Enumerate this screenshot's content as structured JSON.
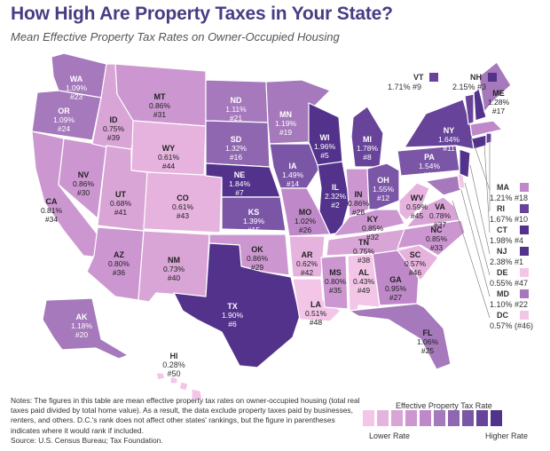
{
  "title": "How High Are Property Taxes in Your State?",
  "subtitle": "Mean Effective Property Tax Rates on Owner-Occupied Housing",
  "notes": "Notes: The figures in this table are mean effective property tax rates on owner-occupied housing (total real taxes paid divided by total home value). As a result, the data exclude property taxes paid by businesses, renters, and others. D.C.'s rank does not affect other states' rankings, but the figure in parentheses indicates where it would rank if included.",
  "source": "Source: U.S. Census Bureau; Tax Foundation.",
  "legend": {
    "title": "Effective Property Tax Rate",
    "low": "Lower Rate",
    "high": "Higher Rate",
    "colors": [
      "#f3c6e8",
      "#e6b3de",
      "#d9a4d6",
      "#cc97d0",
      "#bf88c8",
      "#a579bb",
      "#8f67b0",
      "#7b56a6",
      "#67449a",
      "#53328c"
    ]
  },
  "states": [
    {
      "ab": "WA",
      "rate": "1.09%",
      "rank": "#23"
    },
    {
      "ab": "OR",
      "rate": "1.09%",
      "rank": "#24"
    },
    {
      "ab": "CA",
      "rate": "0.81%",
      "rank": "#34"
    },
    {
      "ab": "NV",
      "rate": "0.86%",
      "rank": "#30"
    },
    {
      "ab": "ID",
      "rate": "0.75%",
      "rank": "#39"
    },
    {
      "ab": "MT",
      "rate": "0.86%",
      "rank": "#31"
    },
    {
      "ab": "WY",
      "rate": "0.61%",
      "rank": "#44"
    },
    {
      "ab": "UT",
      "rate": "0.68%",
      "rank": "#41"
    },
    {
      "ab": "CO",
      "rate": "0.61%",
      "rank": "#43"
    },
    {
      "ab": "AZ",
      "rate": "0.80%",
      "rank": "#36"
    },
    {
      "ab": "NM",
      "rate": "0.73%",
      "rank": "#40"
    },
    {
      "ab": "ND",
      "rate": "1.11%",
      "rank": "#21"
    },
    {
      "ab": "SD",
      "rate": "1.32%",
      "rank": "#16"
    },
    {
      "ab": "NE",
      "rate": "1.84%",
      "rank": "#7"
    },
    {
      "ab": "KS",
      "rate": "1.39%",
      "rank": "#15"
    },
    {
      "ab": "OK",
      "rate": "0.86%",
      "rank": "#29"
    },
    {
      "ab": "TX",
      "rate": "1.90%",
      "rank": "#6"
    },
    {
      "ab": "MN",
      "rate": "1.19%",
      "rank": "#19"
    },
    {
      "ab": "IA",
      "rate": "1.49%",
      "rank": "#14"
    },
    {
      "ab": "MO",
      "rate": "1.02%",
      "rank": "#26"
    },
    {
      "ab": "AR",
      "rate": "0.62%",
      "rank": "#42"
    },
    {
      "ab": "LA",
      "rate": "0.51%",
      "rank": "#48"
    },
    {
      "ab": "WI",
      "rate": "1.96%",
      "rank": "#5"
    },
    {
      "ab": "IL",
      "rate": "2.32%",
      "rank": "#2"
    },
    {
      "ab": "MI",
      "rate": "1.78%",
      "rank": "#8"
    },
    {
      "ab": "IN",
      "rate": "0.86%",
      "rank": "#28"
    },
    {
      "ab": "OH",
      "rate": "1.55%",
      "rank": "#12"
    },
    {
      "ab": "KY",
      "rate": "0.85%",
      "rank": "#32"
    },
    {
      "ab": "TN",
      "rate": "0.75%",
      "rank": "#38"
    },
    {
      "ab": "MS",
      "rate": "0.80%",
      "rank": "#35"
    },
    {
      "ab": "AL",
      "rate": "0.43%",
      "rank": "#49"
    },
    {
      "ab": "GA",
      "rate": "0.95%",
      "rank": "#27"
    },
    {
      "ab": "FL",
      "rate": "1.06%",
      "rank": "#25"
    },
    {
      "ab": "SC",
      "rate": "0.57%",
      "rank": "#46"
    },
    {
      "ab": "NC",
      "rate": "0.85%",
      "rank": "#33"
    },
    {
      "ab": "VA",
      "rate": "0.78%",
      "rank": "#37"
    },
    {
      "ab": "WV",
      "rate": "0.59%",
      "rank": "#45"
    },
    {
      "ab": "PA",
      "rate": "1.54%",
      "rank": "#13"
    },
    {
      "ab": "NY",
      "rate": "1.64%",
      "rank": "#11"
    },
    {
      "ab": "ME",
      "rate": "1.28%",
      "rank": "#17"
    },
    {
      "ab": "AK",
      "rate": "1.18%",
      "rank": "#20"
    },
    {
      "ab": "HI",
      "rate": "0.28%",
      "rank": "#50"
    },
    {
      "ab": "VT",
      "rate": "1.71%",
      "rank": "#9"
    },
    {
      "ab": "NH",
      "rate": "2.15%",
      "rank": "#3"
    },
    {
      "ab": "MA",
      "rate": "1.21%",
      "rank": "#18"
    },
    {
      "ab": "RI",
      "rate": "1.67%",
      "rank": "#10"
    },
    {
      "ab": "CT",
      "rate": "1.98%",
      "rank": "#4"
    },
    {
      "ab": "NJ",
      "rate": "2.38%",
      "rank": "#1"
    },
    {
      "ab": "DE",
      "rate": "0.55%",
      "rank": "#47"
    },
    {
      "ab": "MD",
      "rate": "1.10%",
      "rank": "#22"
    },
    {
      "ab": "DC",
      "rate": "0.57%",
      "rank": "(#46)"
    }
  ]
}
